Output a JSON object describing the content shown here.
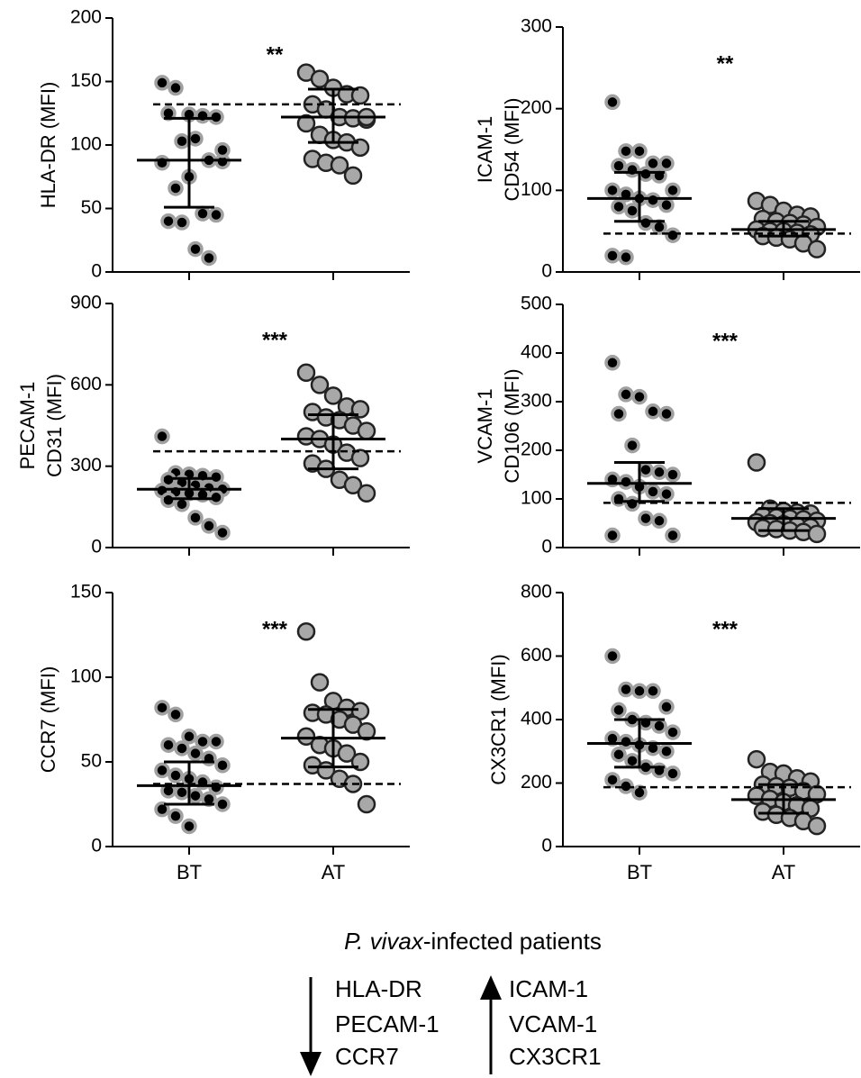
{
  "chart_data": [
    {
      "type": "strip",
      "ylabel": [
        "HLA-DR (MFI)"
      ],
      "annotation": "**",
      "categories": [
        null,
        null
      ],
      "ylim": [
        0,
        200
      ],
      "yticks": [
        0,
        50,
        100,
        150,
        200
      ],
      "reference": 132,
      "series": [
        {
          "color": "#000000",
          "edge": "#a0a0a0",
          "values": [
            149,
            145,
            124,
            123,
            122,
            125,
            103,
            105,
            88,
            87,
            86,
            66,
            75,
            46,
            45,
            40,
            39,
            18,
            11,
            96
          ],
          "median": 88,
          "error": [
            51,
            121
          ]
        },
        {
          "color": "#a8a8a8",
          "edge": "#222222",
          "values": [
            157,
            152,
            145,
            140,
            139,
            132,
            128,
            122,
            121,
            120,
            117,
            108,
            104,
            102,
            98,
            89,
            86,
            84,
            76,
            122
          ],
          "median": 122,
          "error": [
            102,
            144
          ]
        }
      ]
    },
    {
      "type": "strip",
      "ylabel": [
        "ICAM-1",
        "CD54 (MFI)"
      ],
      "annotation": "**",
      "categories": [
        null,
        null
      ],
      "ylim": [
        0,
        300
      ],
      "yticks": [
        0,
        100,
        200,
        300
      ],
      "reference": 47,
      "series": [
        {
          "color": "#000000",
          "edge": "#a0a0a0",
          "values": [
            208,
            148,
            148,
            133,
            133,
            130,
            125,
            120,
            118,
            100,
            100,
            95,
            90,
            88,
            82,
            80,
            75,
            60,
            55,
            45,
            20,
            18
          ],
          "median": 90,
          "error": [
            62,
            122
          ]
        },
        {
          "color": "#a8a8a8",
          "edge": "#222222",
          "values": [
            87,
            82,
            75,
            70,
            68,
            65,
            62,
            60,
            58,
            55,
            52,
            50,
            50,
            48,
            46,
            44,
            42,
            40,
            35,
            28
          ],
          "median": 52,
          "error": [
            44,
            62
          ]
        }
      ]
    },
    {
      "type": "strip",
      "ylabel": [
        "PECAM-1",
        "CD31 (MFI)"
      ],
      "annotation": "***",
      "categories": [
        null,
        null
      ],
      "ylim": [
        0,
        900
      ],
      "yticks": [
        0,
        300,
        600,
        900
      ],
      "reference": 355,
      "series": [
        {
          "color": "#000000",
          "edge": "#a0a0a0",
          "values": [
            410,
            275,
            270,
            265,
            260,
            250,
            240,
            230,
            220,
            215,
            210,
            205,
            200,
            195,
            185,
            175,
            160,
            110,
            80,
            55
          ],
          "median": 215,
          "error": [
            180,
            255
          ]
        },
        {
          "color": "#a8a8a8",
          "edge": "#222222",
          "values": [
            645,
            600,
            560,
            520,
            510,
            500,
            480,
            470,
            450,
            430,
            410,
            400,
            380,
            350,
            330,
            310,
            290,
            250,
            230,
            200
          ],
          "median": 400,
          "error": [
            290,
            490
          ]
        }
      ]
    },
    {
      "type": "strip",
      "ylabel": [
        "VCAM-1",
        "CD106 (MFI)"
      ],
      "annotation": "***",
      "categories": [
        null,
        null
      ],
      "ylim": [
        0,
        500
      ],
      "yticks": [
        0,
        100,
        200,
        300,
        400,
        500
      ],
      "reference": 92,
      "series": [
        {
          "color": "#000000",
          "edge": "#a0a0a0",
          "values": [
            380,
            315,
            310,
            280,
            275,
            275,
            210,
            160,
            155,
            150,
            140,
            135,
            125,
            115,
            110,
            100,
            90,
            60,
            55,
            25,
            25
          ],
          "median": 132,
          "error": [
            95,
            175
          ]
        },
        {
          "color": "#a8a8a8",
          "edge": "#222222",
          "values": [
            175,
            80,
            75,
            72,
            70,
            65,
            62,
            60,
            58,
            55,
            52,
            50,
            48,
            45,
            42,
            40,
            38,
            35,
            32,
            28
          ],
          "median": 60,
          "error": [
            35,
            80
          ]
        }
      ]
    },
    {
      "type": "strip",
      "ylabel": [
        "CCR7 (MFI)"
      ],
      "annotation": "***",
      "categories": [
        "BT",
        "AT"
      ],
      "ylim": [
        0,
        150
      ],
      "yticks": [
        0,
        50,
        100,
        150
      ],
      "reference": 37,
      "series": [
        {
          "color": "#000000",
          "edge": "#a0a0a0",
          "values": [
            82,
            78,
            65,
            62,
            62,
            60,
            58,
            55,
            52,
            48,
            45,
            42,
            40,
            38,
            35,
            33,
            32,
            30,
            28,
            25,
            22,
            18,
            12
          ],
          "median": 36,
          "error": [
            25,
            50
          ]
        },
        {
          "color": "#a8a8a8",
          "edge": "#222222",
          "values": [
            127,
            97,
            86,
            82,
            80,
            79,
            78,
            75,
            72,
            68,
            65,
            60,
            58,
            55,
            50,
            48,
            45,
            40,
            37,
            25
          ],
          "median": 64,
          "error": [
            47,
            81
          ]
        }
      ]
    },
    {
      "type": "strip",
      "ylabel": [
        "CX3CR1 (MFI)"
      ],
      "annotation": "***",
      "categories": [
        "BT",
        "AT"
      ],
      "ylim": [
        0,
        800
      ],
      "yticks": [
        0,
        200,
        400,
        600,
        800
      ],
      "reference": 187,
      "series": [
        {
          "color": "#000000",
          "edge": "#a0a0a0",
          "values": [
            600,
            495,
            490,
            490,
            440,
            430,
            400,
            390,
            380,
            360,
            340,
            330,
            320,
            310,
            300,
            290,
            270,
            250,
            240,
            230,
            210,
            190,
            170
          ],
          "median": 325,
          "error": [
            250,
            400
          ]
        },
        {
          "color": "#a8a8a8",
          "edge": "#222222",
          "values": [
            275,
            235,
            230,
            215,
            205,
            195,
            190,
            185,
            175,
            165,
            160,
            150,
            140,
            130,
            120,
            110,
            100,
            90,
            80,
            65
          ],
          "median": 148,
          "error": [
            105,
            195
          ]
        }
      ]
    }
  ],
  "footer": {
    "title": [
      "P. vivax",
      "-infected patients"
    ],
    "down": [
      "HLA-DR",
      "PECAM-1",
      "CCR7"
    ],
    "up": [
      "ICAM-1",
      "VCAM-1",
      "CX3CR1"
    ]
  }
}
